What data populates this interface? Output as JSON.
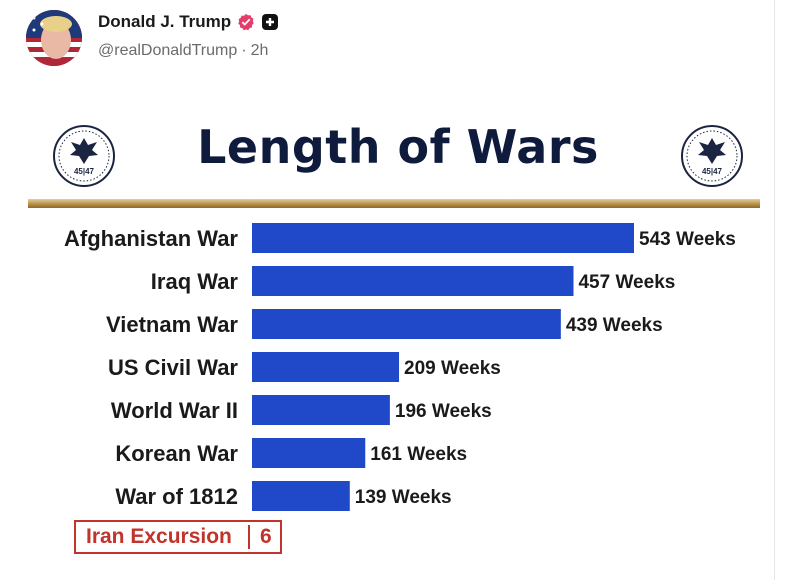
{
  "post": {
    "display_name": "Donald J. Trump",
    "handle": "@realDonaldTrump",
    "separator": "·",
    "time": "2h",
    "verified_color": "#e33d6b",
    "follow_icon": "plus-square-icon"
  },
  "seal": {
    "label": "45|47"
  },
  "chart_data": {
    "type": "bar",
    "orientation": "horizontal",
    "title": "Length of Wars",
    "categories": [
      "Afghanistan War",
      "Iraq War",
      "Vietnam War",
      "US Civil War",
      "World War II",
      "Korean War",
      "War of 1812"
    ],
    "values": [
      543,
      457,
      439,
      209,
      196,
      161,
      139
    ],
    "value_labels": [
      "543 Weeks",
      "457 Weeks",
      "439 Weeks",
      "209 Weeks",
      "196 Weeks",
      "161 Weeks",
      "139 Weeks"
    ],
    "unit": "Weeks",
    "bar_color": "#1f49c9",
    "grid": false,
    "highlight": {
      "label": "Iran Excursion",
      "value": "6",
      "color": "#c0342b"
    }
  }
}
